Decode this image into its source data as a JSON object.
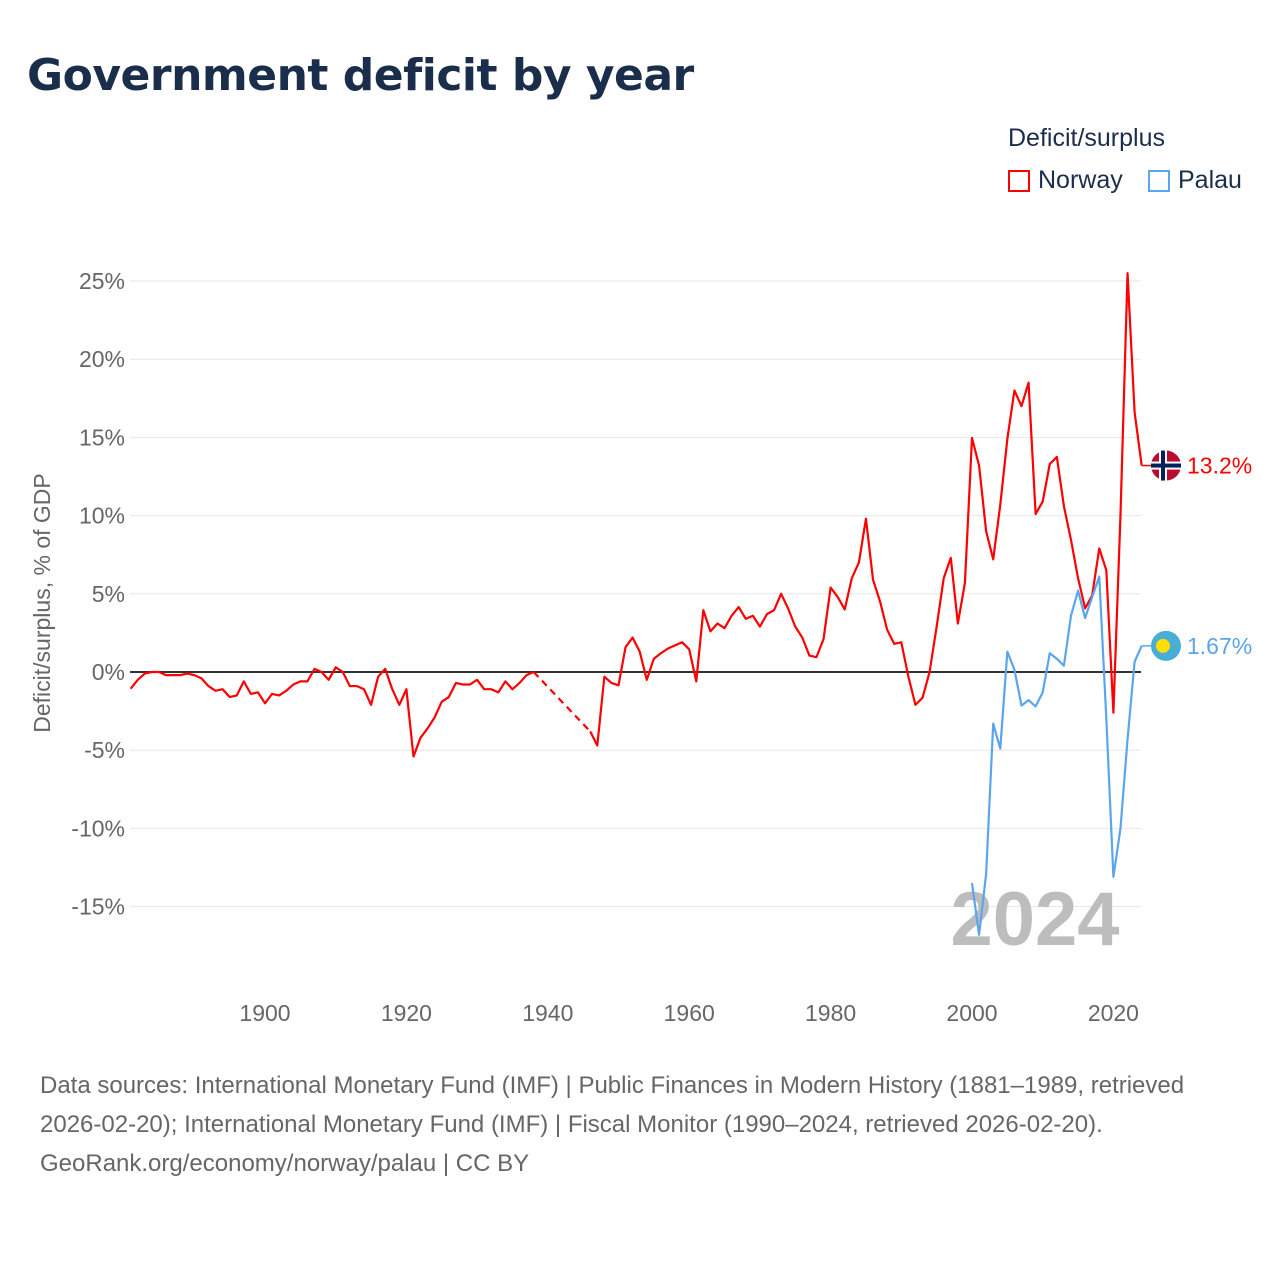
{
  "title": "Government deficit by year",
  "legend": {
    "title": "Deficit/surplus",
    "items": [
      {
        "name": "Norway",
        "color": "#ff0000"
      },
      {
        "name": "Palau",
        "color": "#5aa5ec"
      }
    ]
  },
  "footer": {
    "sources": "Data sources: International Monetary Fund (IMF) | Public Finances in Modern History (1881–1989, retrieved 2026-02-20); International Monetary Fund (IMF) | Fiscal Monitor (1990–2024, retrieved 2026-02-20).",
    "credit": "GeoRank.org/economy/norway/palau | CC BY"
  },
  "chart_data": {
    "type": "line",
    "title": "Government deficit by year",
    "ylabel": "Deficit/surplus, % of GDP",
    "xlabel": "",
    "ylim": [
      -15,
      25
    ],
    "xlim": [
      1881,
      2024
    ],
    "yticks": [
      {
        "v": 25,
        "label": "25%"
      },
      {
        "v": 20,
        "label": "20%"
      },
      {
        "v": 15,
        "label": "15%"
      },
      {
        "v": 10,
        "label": "10%"
      },
      {
        "v": 5,
        "label": "5%"
      },
      {
        "v": 0,
        "label": "0%"
      },
      {
        "v": -5,
        "label": "-5%"
      },
      {
        "v": -10,
        "label": "-10%"
      },
      {
        "v": -15,
        "label": "-15%"
      }
    ],
    "xticks": [
      {
        "v": 1900,
        "label": "1900"
      },
      {
        "v": 1920,
        "label": "1920"
      },
      {
        "v": 1940,
        "label": "1940"
      },
      {
        "v": 1960,
        "label": "1960"
      },
      {
        "v": 1980,
        "label": "1980"
      },
      {
        "v": 2000,
        "label": "2000"
      },
      {
        "v": 2020,
        "label": "2020"
      }
    ],
    "year_label": "2024",
    "grid": true,
    "legend_position": "top-right",
    "series": [
      {
        "name": "Norway",
        "color": "#ff0000",
        "end_label": "13.2%",
        "x_start": 1881,
        "values": [
          -1.07,
          -0.5,
          -0.1,
          0,
          0,
          -0.2,
          -0.2,
          -0.2,
          -0.1,
          -0.2,
          -0.4,
          -0.9,
          -1.2,
          -1.1,
          -1.6,
          -1.5,
          -0.6,
          -1.4,
          -1.3,
          -2.0,
          -1.4,
          -1.5,
          -1.2,
          -0.8,
          -0.6,
          -0.6,
          0.2,
          0,
          -0.5,
          0.3,
          0,
          -0.9,
          -0.9,
          -1.1,
          -2.1,
          -0.3,
          0.2,
          -1.1,
          -2.1,
          -1.1,
          -5.4,
          -4.2,
          -3.6,
          -2.9,
          -1.9,
          -1.6,
          -0.7,
          -0.8,
          -0.8,
          -0.5,
          -1.1,
          -1.1,
          -1.3,
          -0.6,
          -1.1,
          -0.7,
          -0.2,
          0,
          null,
          null,
          null,
          null,
          null,
          null,
          null,
          -3.8,
          -4.7,
          -0.3,
          -0.7,
          -0.85,
          1.6,
          2.2,
          1.3,
          -0.5,
          0.85,
          1.2,
          1.5,
          1.7,
          1.9,
          1.45,
          -0.6,
          3.95,
          2.6,
          3.1,
          2.8,
          3.6,
          4.15,
          3.4,
          3.6,
          2.9,
          3.7,
          3.95,
          5.0,
          4.05,
          2.9,
          2.2,
          1.05,
          0.95,
          2.1,
          5.4,
          4.8,
          4.0,
          6.0,
          7.0,
          9.8,
          5.9,
          4.5,
          2.7,
          1.8,
          1.9,
          -0.3,
          -2.1,
          -1.65,
          0,
          2.9,
          6.0,
          7.3,
          3.1,
          5.7,
          14.96,
          13.2,
          9.0,
          7.2,
          10.7,
          14.9,
          18.0,
          17.0,
          18.5,
          10.1,
          10.9,
          13.3,
          13.75,
          10.6,
          8.45,
          6.0,
          4.07,
          4.9,
          7.9,
          6.5,
          -2.6,
          10.0,
          25.5,
          16.6,
          13.2
        ]
      },
      {
        "name": "Palau",
        "color": "#5aa5ec",
        "end_label": "1.67%",
        "x_start": 2000,
        "values": [
          -13.5,
          -16.8,
          -12.9,
          -3.3,
          -4.9,
          1.3,
          0.15,
          -2.15,
          -1.8,
          -2.2,
          -1.3,
          1.2,
          0.85,
          0.4,
          3.6,
          5.2,
          3.45,
          4.8,
          6.1,
          -3.0,
          -13.1,
          -10.0,
          -4.3,
          0.66,
          1.67
        ]
      }
    ]
  }
}
